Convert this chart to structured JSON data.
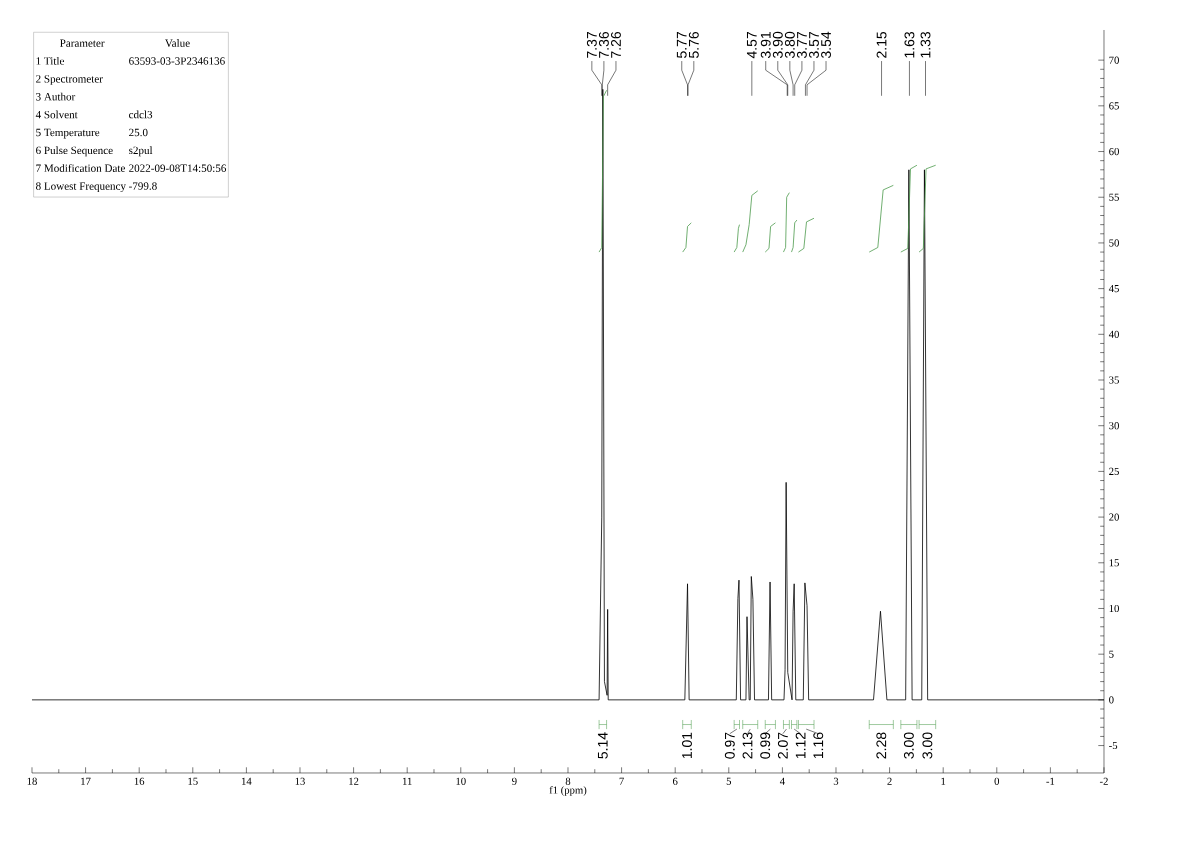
{
  "chart_data": {
    "type": "line",
    "xlabel": "f1 (ppm)",
    "xlim": [
      18,
      -2
    ],
    "ylim": [
      -8,
      73.3
    ],
    "xticks": [
      18,
      17,
      16,
      15,
      14,
      13,
      12,
      11,
      10,
      9,
      8,
      7,
      6,
      5,
      4,
      3,
      2,
      1,
      0,
      -1,
      -2
    ],
    "yticks": [
      -5,
      0,
      5,
      10,
      15,
      20,
      25,
      30,
      35,
      40,
      45,
      50,
      55,
      60,
      65,
      70
    ],
    "series": [
      {
        "color": "#000000",
        "x": [
          18,
          12,
          7.42,
          7.37,
          7.35,
          7.32,
          7.27,
          7.26,
          7.25,
          5.82,
          5.77,
          5.74,
          4.86,
          4.83,
          4.81,
          4.78,
          4.68,
          4.66,
          4.62,
          4.6,
          4.58,
          4.55,
          4.52,
          4.26,
          4.23,
          4.2,
          3.97,
          3.95,
          3.93,
          3.9,
          3.82,
          3.8,
          3.78,
          3.75,
          3.61,
          3.58,
          3.54,
          3.51,
          2.3,
          2.17,
          2.05,
          1.7,
          1.64,
          1.58,
          1.4,
          1.35,
          1.29,
          -2
        ],
        "values": [
          0,
          0,
          0,
          20,
          66.8,
          2,
          0.5,
          9.9,
          0,
          0,
          12.7,
          0,
          0,
          11.1,
          13.1,
          0,
          0,
          9.1,
          0,
          0,
          13.5,
          11.0,
          0,
          0,
          12.9,
          0,
          0,
          3.3,
          23.8,
          3,
          0,
          9.7,
          12.7,
          0,
          0,
          12.8,
          10.3,
          0,
          0,
          9.7,
          0,
          0,
          58,
          0,
          0,
          58,
          0,
          0
        ]
      },
      {
        "color": "#4c9a4c",
        "x": [
          7.42,
          7.37,
          7.34,
          7.28
        ],
        "values": [
          49,
          49.5,
          66,
          66.7
        ]
      },
      {
        "color": "#4c9a4c",
        "x": [
          5.86,
          5.8,
          5.77,
          5.7
        ],
        "values": [
          49,
          49.5,
          51.8,
          52.2
        ]
      },
      {
        "color": "#4c9a4c",
        "x": [
          4.9,
          4.85,
          4.82,
          4.8
        ],
        "values": [
          49,
          49.5,
          51.6,
          52.0
        ]
      },
      {
        "color": "#4c9a4c",
        "x": [
          4.74,
          4.68,
          4.62,
          4.57,
          4.46
        ],
        "values": [
          49,
          49.8,
          52,
          55.2,
          55.7
        ]
      },
      {
        "color": "#4c9a4c",
        "x": [
          4.32,
          4.25,
          4.22,
          4.13
        ],
        "values": [
          49,
          49.4,
          51.8,
          52.2
        ]
      },
      {
        "color": "#4c9a4c",
        "x": [
          3.98,
          3.94,
          3.92,
          3.87
        ],
        "values": [
          49,
          49.5,
          55,
          55.5
        ]
      },
      {
        "color": "#4c9a4c",
        "x": [
          3.83,
          3.8,
          3.77,
          3.73
        ],
        "values": [
          49,
          49.5,
          52.2,
          52.5
        ]
      },
      {
        "color": "#4c9a4c",
        "x": [
          3.7,
          3.6,
          3.55,
          3.41
        ],
        "values": [
          49,
          49.4,
          52.3,
          52.7
        ]
      },
      {
        "color": "#4c9a4c",
        "x": [
          2.38,
          2.22,
          2.12,
          1.93
        ],
        "values": [
          49,
          49.5,
          55.8,
          56.3
        ]
      },
      {
        "color": "#4c9a4c",
        "x": [
          1.79,
          1.66,
          1.61,
          1.49
        ],
        "values": [
          49,
          49.4,
          58.1,
          58.5
        ]
      },
      {
        "color": "#4c9a4c",
        "x": [
          1.45,
          1.37,
          1.32,
          1.14
        ],
        "values": [
          49,
          49.4,
          58.1,
          58.5
        ]
      }
    ],
    "annotations": [
      "Parameter",
      "Value",
      "1 Title",
      "63593-03-3P2346136",
      "2 Spectrometer",
      null,
      "3 Author",
      null,
      "4 Solvent",
      "cdcl3",
      "5 Temperature",
      "25.0",
      "6 Pulse Sequence",
      "s2pul",
      "7 Modification Date",
      "2022-09-08T14:50:56",
      "8 Lowest Frequency",
      "-799.8",
      {
        "text": "7.37",
        "x": 7.37
      },
      {
        "text": "7.36",
        "x": 7.36
      },
      {
        "text": "7.26",
        "x": 7.26
      },
      {
        "text": "5.77",
        "x": 5.77
      },
      {
        "text": "5.76",
        "x": 5.76
      },
      {
        "text": "4.57",
        "x": 4.57
      },
      {
        "text": "3.91",
        "x": 3.91
      },
      {
        "text": "3.90",
        "x": 3.9
      },
      {
        "text": "3.80",
        "x": 3.8
      },
      {
        "text": "3.77",
        "x": 3.77
      },
      {
        "text": "3.57",
        "x": 3.57
      },
      {
        "text": "3.54",
        "x": 3.54
      },
      {
        "text": "2.15",
        "x": 2.15
      },
      {
        "text": "1.63",
        "x": 1.63
      },
      {
        "text": "1.33",
        "x": 1.33
      },
      "5.14",
      "1.01",
      "0.97",
      "2.13",
      "0.99",
      "2.07",
      "1.12",
      "1.16",
      "2.28",
      "3.00",
      "3.00"
    ]
  }
}
